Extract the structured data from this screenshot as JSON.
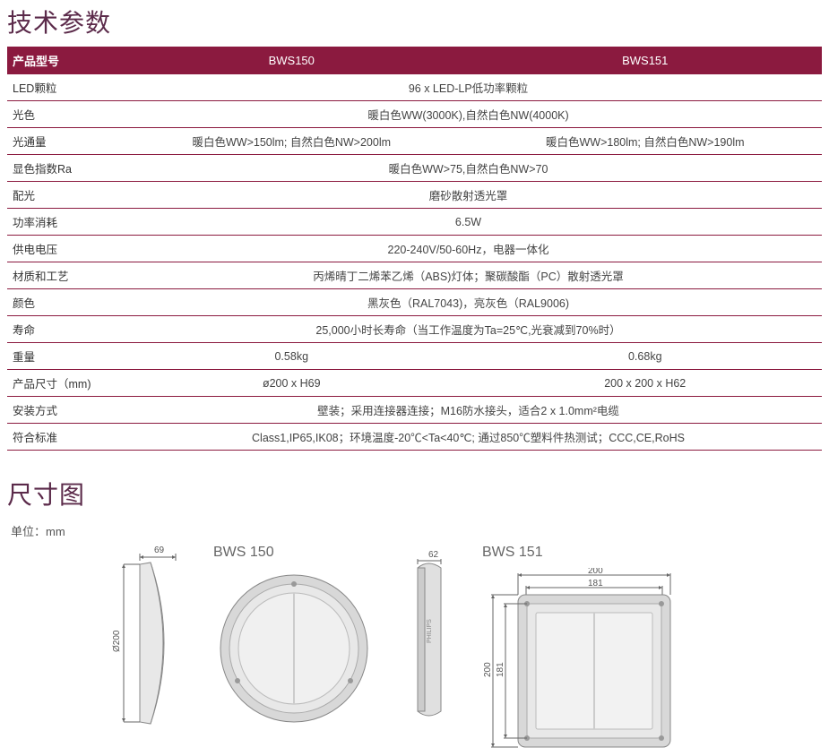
{
  "titles": {
    "tech_specs": "技术参数",
    "dimensions": "尺寸图"
  },
  "unit_label": "单位：mm",
  "table": {
    "header": {
      "col0": "产品型号",
      "col1": "BWS150",
      "col2": "BWS151"
    },
    "rows": [
      {
        "label": "LED颗粒",
        "merged": "96 x LED-LP低功率颗粒"
      },
      {
        "label": "光色",
        "merged": "暖白色WW(3000K),自然白色NW(4000K)"
      },
      {
        "label": "光通量",
        "v1": "暖白色WW>150lm; 自然白色NW>200lm",
        "v2": "暖白色WW>180lm; 自然白色NW>190lm"
      },
      {
        "label": "显色指数Ra",
        "merged": "暖白色WW>75,自然白色NW>70"
      },
      {
        "label": "配光",
        "merged": "磨砂散射透光罩"
      },
      {
        "label": "功率消耗",
        "merged": "6.5W"
      },
      {
        "label": "供电电压",
        "merged": "220-240V/50-60Hz，电器一体化"
      },
      {
        "label": "材质和工艺",
        "merged": "丙烯晴丁二烯苯乙烯（ABS)灯体；聚碳酸酯（PC）散射透光罩"
      },
      {
        "label": "颜色",
        "merged": "黑灰色（RAL7043)，亮灰色（RAL9006)"
      },
      {
        "label": "寿命",
        "merged": "25,000小时长寿命（当工作温度为Ta=25℃,光衰减到70%时）"
      },
      {
        "label": "重量",
        "v1": "0.58kg",
        "v2": "0.68kg"
      },
      {
        "label": "产品尺寸（mm)",
        "v1": "ø200 x H69",
        "v2": "200 x 200 x H62"
      },
      {
        "label": "安装方式",
        "merged": "壁装；采用连接器连接；M16防水接头，适合2 x 1.0mm²电缆"
      },
      {
        "label": "符合标准",
        "merged": "Class1,IP65,IK08；环境温度-20℃<Ta<40℃; 通过850℃塑料件热测试；CCC,CE,RoHS"
      }
    ]
  },
  "diagrams": {
    "bws150": {
      "title": "BWS 150",
      "diameter_label": "Ø200",
      "depth_top": "69",
      "side_h": "62"
    },
    "bws151": {
      "title": "BWS 151",
      "outer": "200",
      "inner": "181"
    }
  },
  "colors": {
    "brand": "#8b1a3f",
    "heading": "#5b2a4a",
    "text": "#444444",
    "stroke": "#666666",
    "fill_light": "#e8e8e8",
    "fill_mid": "#d0d0d0"
  }
}
